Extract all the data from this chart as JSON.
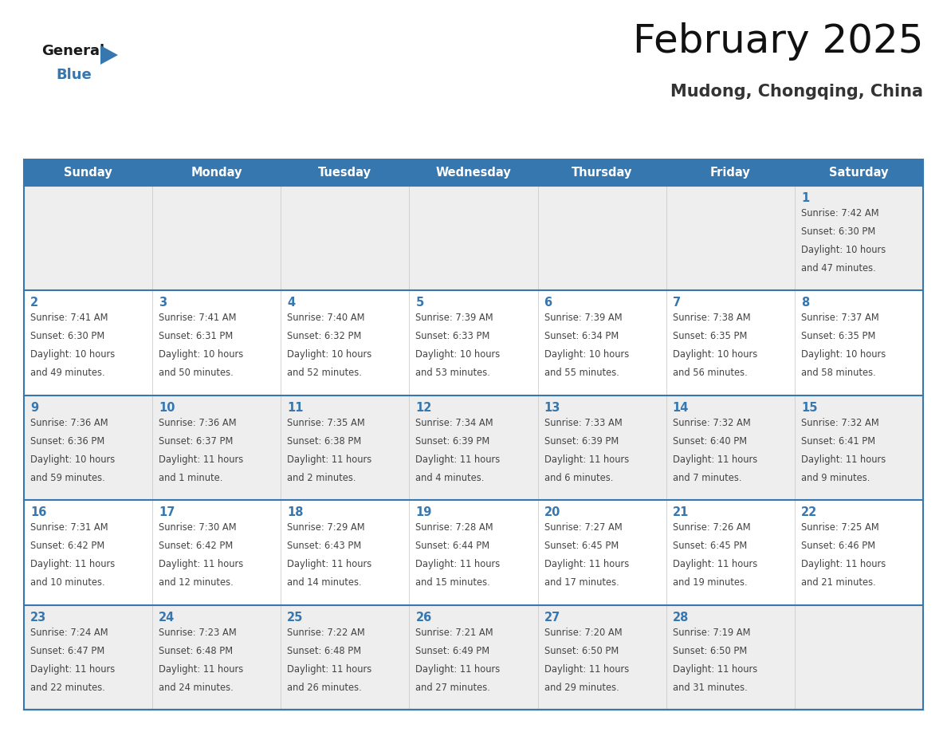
{
  "title": "February 2025",
  "subtitle": "Mudong, Chongqing, China",
  "header_bg_color": "#3777b0",
  "header_text_color": "#ffffff",
  "day_names": [
    "Sunday",
    "Monday",
    "Tuesday",
    "Wednesday",
    "Thursday",
    "Friday",
    "Saturday"
  ],
  "bg_color": "#ffffff",
  "row_colors": [
    "#eeeeee",
    "#ffffff",
    "#eeeeee",
    "#ffffff",
    "#eeeeee"
  ],
  "separator_color": "#3777b0",
  "date_color": "#3777b0",
  "text_color": "#444444",
  "calendar": [
    [
      null,
      null,
      null,
      null,
      null,
      null,
      1
    ],
    [
      2,
      3,
      4,
      5,
      6,
      7,
      8
    ],
    [
      9,
      10,
      11,
      12,
      13,
      14,
      15
    ],
    [
      16,
      17,
      18,
      19,
      20,
      21,
      22
    ],
    [
      23,
      24,
      25,
      26,
      27,
      28,
      null
    ]
  ],
  "sun_data": {
    "1": {
      "rise": "7:42 AM",
      "set": "6:30 PM",
      "hours": "10 hours",
      "mins": "47 minutes."
    },
    "2": {
      "rise": "7:41 AM",
      "set": "6:30 PM",
      "hours": "10 hours",
      "mins": "49 minutes."
    },
    "3": {
      "rise": "7:41 AM",
      "set": "6:31 PM",
      "hours": "10 hours",
      "mins": "50 minutes."
    },
    "4": {
      "rise": "7:40 AM",
      "set": "6:32 PM",
      "hours": "10 hours",
      "mins": "52 minutes."
    },
    "5": {
      "rise": "7:39 AM",
      "set": "6:33 PM",
      "hours": "10 hours",
      "mins": "53 minutes."
    },
    "6": {
      "rise": "7:39 AM",
      "set": "6:34 PM",
      "hours": "10 hours",
      "mins": "55 minutes."
    },
    "7": {
      "rise": "7:38 AM",
      "set": "6:35 PM",
      "hours": "10 hours",
      "mins": "56 minutes."
    },
    "8": {
      "rise": "7:37 AM",
      "set": "6:35 PM",
      "hours": "10 hours",
      "mins": "58 minutes."
    },
    "9": {
      "rise": "7:36 AM",
      "set": "6:36 PM",
      "hours": "10 hours",
      "mins": "59 minutes."
    },
    "10": {
      "rise": "7:36 AM",
      "set": "6:37 PM",
      "hours": "11 hours",
      "mins": "1 minute."
    },
    "11": {
      "rise": "7:35 AM",
      "set": "6:38 PM",
      "hours": "11 hours",
      "mins": "2 minutes."
    },
    "12": {
      "rise": "7:34 AM",
      "set": "6:39 PM",
      "hours": "11 hours",
      "mins": "4 minutes."
    },
    "13": {
      "rise": "7:33 AM",
      "set": "6:39 PM",
      "hours": "11 hours",
      "mins": "6 minutes."
    },
    "14": {
      "rise": "7:32 AM",
      "set": "6:40 PM",
      "hours": "11 hours",
      "mins": "7 minutes."
    },
    "15": {
      "rise": "7:32 AM",
      "set": "6:41 PM",
      "hours": "11 hours",
      "mins": "9 minutes."
    },
    "16": {
      "rise": "7:31 AM",
      "set": "6:42 PM",
      "hours": "11 hours",
      "mins": "10 minutes."
    },
    "17": {
      "rise": "7:30 AM",
      "set": "6:42 PM",
      "hours": "11 hours",
      "mins": "12 minutes."
    },
    "18": {
      "rise": "7:29 AM",
      "set": "6:43 PM",
      "hours": "11 hours",
      "mins": "14 minutes."
    },
    "19": {
      "rise": "7:28 AM",
      "set": "6:44 PM",
      "hours": "11 hours",
      "mins": "15 minutes."
    },
    "20": {
      "rise": "7:27 AM",
      "set": "6:45 PM",
      "hours": "11 hours",
      "mins": "17 minutes."
    },
    "21": {
      "rise": "7:26 AM",
      "set": "6:45 PM",
      "hours": "11 hours",
      "mins": "19 minutes."
    },
    "22": {
      "rise": "7:25 AM",
      "set": "6:46 PM",
      "hours": "11 hours",
      "mins": "21 minutes."
    },
    "23": {
      "rise": "7:24 AM",
      "set": "6:47 PM",
      "hours": "11 hours",
      "mins": "22 minutes."
    },
    "24": {
      "rise": "7:23 AM",
      "set": "6:48 PM",
      "hours": "11 hours",
      "mins": "24 minutes."
    },
    "25": {
      "rise": "7:22 AM",
      "set": "6:48 PM",
      "hours": "11 hours",
      "mins": "26 minutes."
    },
    "26": {
      "rise": "7:21 AM",
      "set": "6:49 PM",
      "hours": "11 hours",
      "mins": "27 minutes."
    },
    "27": {
      "rise": "7:20 AM",
      "set": "6:50 PM",
      "hours": "11 hours",
      "mins": "29 minutes."
    },
    "28": {
      "rise": "7:19 AM",
      "set": "6:50 PM",
      "hours": "11 hours",
      "mins": "31 minutes."
    }
  },
  "logo_general_color": "#1a1a1a",
  "logo_blue_color": "#3777b0",
  "logo_triangle_color": "#3777b0"
}
